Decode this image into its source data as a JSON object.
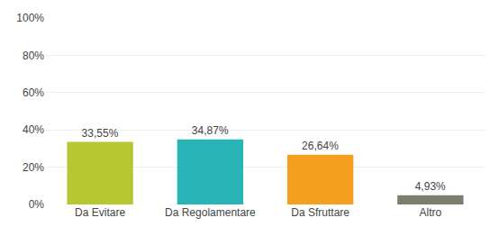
{
  "chart_data": {
    "type": "bar",
    "categories": [
      "Da Evitare",
      "Da Regolamentare",
      "Da Sfruttare",
      "Altro"
    ],
    "values": [
      33.55,
      34.87,
      26.64,
      4.93
    ],
    "value_labels": [
      "33,55%",
      "34,87%",
      "26,64%",
      "4,93%"
    ],
    "colors": [
      "#b5c832",
      "#29b5b5",
      "#f5a020",
      "#7d7d6b"
    ],
    "data_labels": true,
    "ylim": [
      0,
      100
    ],
    "yticks": [
      {
        "value": 0,
        "label": "0%"
      },
      {
        "value": 20,
        "label": "20%"
      },
      {
        "value": 40,
        "label": "40%"
      },
      {
        "value": 60,
        "label": "60%"
      },
      {
        "value": 80,
        "label": "80%"
      },
      {
        "value": 100,
        "label": "100%"
      }
    ],
    "grid": true
  }
}
